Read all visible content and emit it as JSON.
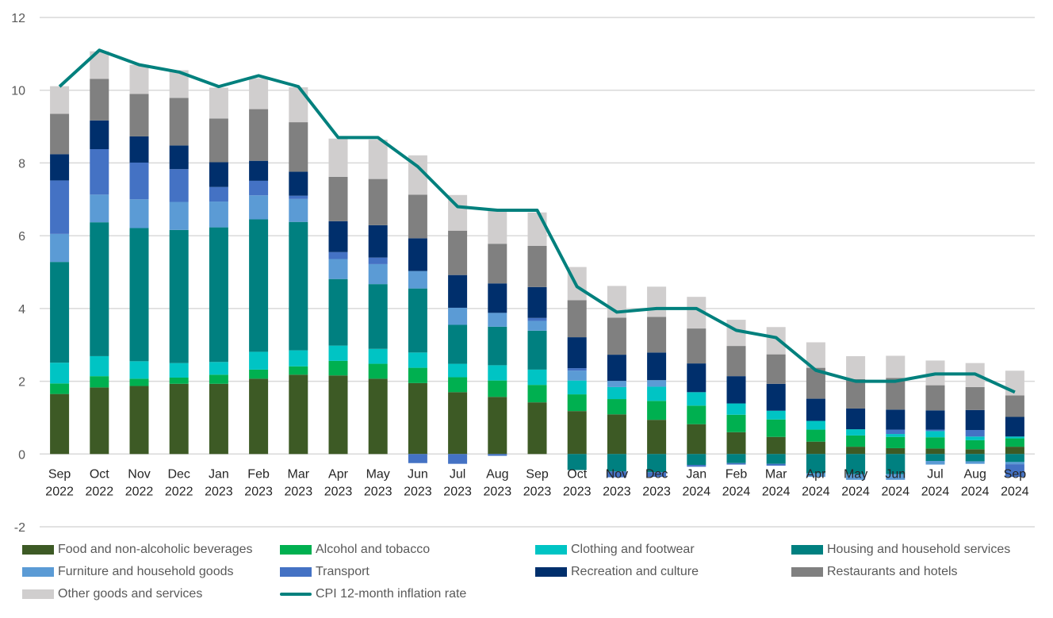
{
  "chart_data": {
    "type": "bar",
    "subtype": "stacked-bar-with-line",
    "title": "",
    "xlabel": "",
    "ylabel": "",
    "ylim": [
      -2,
      12
    ],
    "yticks": [
      -2,
      0,
      2,
      4,
      6,
      8,
      10,
      12
    ],
    "grid": true,
    "legend_position": "bottom",
    "categories": [
      [
        "Sep",
        "2022"
      ],
      [
        "Oct",
        "2022"
      ],
      [
        "Nov",
        "2022"
      ],
      [
        "Dec",
        "2022"
      ],
      [
        "Jan",
        "2023"
      ],
      [
        "Feb",
        "2023"
      ],
      [
        "Mar",
        "2023"
      ],
      [
        "Apr",
        "2023"
      ],
      [
        "May",
        "2023"
      ],
      [
        "Jun",
        "2023"
      ],
      [
        "Jul",
        "2023"
      ],
      [
        "Aug",
        "2023"
      ],
      [
        "Sep",
        "2023"
      ],
      [
        "Oct",
        "2023"
      ],
      [
        "Nov",
        "2023"
      ],
      [
        "Dec",
        "2023"
      ],
      [
        "Jan",
        "2024"
      ],
      [
        "Feb",
        "2024"
      ],
      [
        "Mar",
        "2024"
      ],
      [
        "Apr",
        "2024"
      ],
      [
        "May",
        "2024"
      ],
      [
        "Jun",
        "2024"
      ],
      [
        "Jul",
        "2024"
      ],
      [
        "Aug",
        "2024"
      ],
      [
        "Sep",
        "2024"
      ]
    ],
    "series": [
      {
        "name": "Food and non-alcoholic beverages",
        "color": "#3d5a25",
        "values": [
          1.65,
          1.83,
          1.87,
          1.93,
          1.93,
          2.07,
          2.18,
          2.16,
          2.07,
          1.95,
          1.7,
          1.57,
          1.42,
          1.18,
          1.09,
          0.94,
          0.82,
          0.6,
          0.47,
          0.34,
          0.2,
          0.16,
          0.15,
          0.13,
          0.2
        ]
      },
      {
        "name": "Alcohol and tobacco",
        "color": "#00b050",
        "values": [
          0.29,
          0.31,
          0.2,
          0.17,
          0.25,
          0.25,
          0.23,
          0.4,
          0.41,
          0.42,
          0.41,
          0.45,
          0.48,
          0.46,
          0.42,
          0.52,
          0.51,
          0.48,
          0.48,
          0.33,
          0.31,
          0.31,
          0.31,
          0.25,
          0.23
        ]
      },
      {
        "name": "Clothing and footwear",
        "color": "#00c4c4",
        "values": [
          0.57,
          0.55,
          0.48,
          0.4,
          0.35,
          0.49,
          0.44,
          0.42,
          0.41,
          0.42,
          0.37,
          0.42,
          0.42,
          0.38,
          0.33,
          0.39,
          0.37,
          0.31,
          0.24,
          0.24,
          0.17,
          0.08,
          0.17,
          0.1,
          0.05
        ]
      },
      {
        "name": "Housing and household services",
        "color": "#008080",
        "values": [
          2.77,
          3.68,
          3.66,
          3.66,
          3.7,
          3.64,
          3.53,
          1.83,
          1.78,
          1.76,
          1.07,
          1.06,
          1.07,
          -0.44,
          -0.48,
          -0.5,
          -0.3,
          -0.25,
          -0.27,
          -0.53,
          -0.55,
          -0.55,
          -0.19,
          -0.2,
          -0.22
        ]
      },
      {
        "name": "Furniture and household goods",
        "color": "#5b9bd5",
        "values": [
          0.77,
          0.76,
          0.79,
          0.77,
          0.71,
          0.66,
          0.63,
          0.55,
          0.55,
          0.48,
          0.47,
          0.38,
          0.27,
          0.27,
          0.17,
          0.18,
          0,
          0,
          0,
          -0.1,
          -0.16,
          -0.16,
          -0.1,
          -0.07,
          -0.06
        ]
      },
      {
        "name": "Transport",
        "color": "#4472c4",
        "values": [
          1.47,
          1.25,
          1.01,
          0.9,
          0.4,
          0.4,
          0.09,
          0.19,
          0.18,
          -0.25,
          -0.27,
          -0.05,
          0.08,
          0.07,
          -0.16,
          -0.13,
          -0.05,
          -0.04,
          -0.05,
          0,
          0,
          0.12,
          0.04,
          0.18,
          -0.35
        ]
      },
      {
        "name": "Recreation and culture",
        "color": "#002f6c",
        "values": [
          0.72,
          0.79,
          0.72,
          0.65,
          0.68,
          0.55,
          0.66,
          0.85,
          0.89,
          0.9,
          0.9,
          0.81,
          0.85,
          0.85,
          0.72,
          0.76,
          0.79,
          0.75,
          0.74,
          0.61,
          0.57,
          0.55,
          0.53,
          0.55,
          0.54
        ]
      },
      {
        "name": "Restaurants and hotels",
        "color": "#808080",
        "values": [
          1.11,
          1.14,
          1.17,
          1.31,
          1.2,
          1.42,
          1.36,
          1.22,
          1.27,
          1.2,
          1.22,
          1.09,
          1.13,
          1.02,
          1.02,
          0.98,
          0.96,
          0.83,
          0.81,
          0.85,
          0.81,
          0.87,
          0.69,
          0.63,
          0.59
        ]
      },
      {
        "name": "Other goods and services",
        "color": "#d0cece",
        "values": [
          0.76,
          0.76,
          0.8,
          0.76,
          0.85,
          0.85,
          0.96,
          1.05,
          1.08,
          1.08,
          0.98,
          0.92,
          0.92,
          0.91,
          0.87,
          0.83,
          0.87,
          0.72,
          0.75,
          0.7,
          0.63,
          0.61,
          0.68,
          0.66,
          0.68
        ]
      }
    ],
    "line": {
      "name": "CPI 12-month inflation rate",
      "color": "#00807d",
      "values": [
        10.1,
        11.1,
        10.7,
        10.5,
        10.1,
        10.4,
        10.1,
        8.7,
        8.7,
        7.9,
        6.8,
        6.7,
        6.7,
        4.6,
        3.9,
        4.0,
        4.0,
        3.4,
        3.2,
        2.3,
        2.0,
        2.0,
        2.2,
        2.2,
        1.7
      ]
    }
  },
  "legend": {
    "items": [
      {
        "label": "Food and non-alcoholic beverages",
        "color": "#3d5a25",
        "kind": "box"
      },
      {
        "label": "Alcohol and tobacco",
        "color": "#00b050",
        "kind": "box"
      },
      {
        "label": "Clothing and footwear",
        "color": "#00c4c4",
        "kind": "box"
      },
      {
        "label": "Housing and household services",
        "color": "#008080",
        "kind": "box"
      },
      {
        "label": "Furniture and household goods",
        "color": "#5b9bd5",
        "kind": "box"
      },
      {
        "label": "Transport",
        "color": "#4472c4",
        "kind": "box"
      },
      {
        "label": "Recreation and culture",
        "color": "#002f6c",
        "kind": "box"
      },
      {
        "label": "Restaurants and hotels",
        "color": "#808080",
        "kind": "box"
      },
      {
        "label": "Other goods and services",
        "color": "#d0cece",
        "kind": "box"
      },
      {
        "label": "CPI 12-month inflation rate",
        "color": "#00807d",
        "kind": "line"
      }
    ]
  }
}
